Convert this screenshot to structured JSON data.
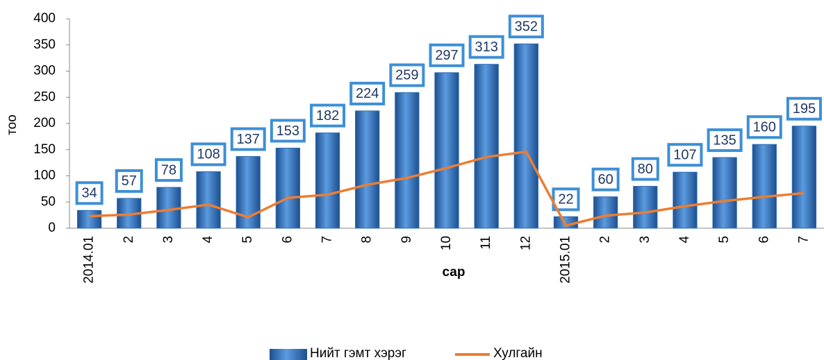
{
  "chart_data": {
    "type": "bar",
    "x_label": "сар",
    "y_label": "тоо",
    "categories": [
      "2014.01",
      "2",
      "3",
      "4",
      "5",
      "6",
      "7",
      "8",
      "9",
      "10",
      "11",
      "12",
      "2015.01",
      "2",
      "3",
      "4",
      "5",
      "6",
      "7"
    ],
    "series": [
      {
        "name": "Нийт гэмт хэрэг",
        "type": "bar",
        "color": "#2e6db4",
        "values": [
          34,
          57,
          78,
          108,
          137,
          153,
          182,
          224,
          259,
          297,
          313,
          352,
          22,
          60,
          80,
          107,
          135,
          160,
          195
        ]
      },
      {
        "name": "Хулгайн",
        "type": "line",
        "color": "#ed7d31",
        "values": [
          23,
          26,
          35,
          45,
          21,
          58,
          64,
          83,
          96,
          115,
          136,
          146,
          5,
          24,
          30,
          42,
          52,
          60,
          67
        ]
      }
    ],
    "ylim": [
      0,
      400
    ],
    "yticks": [
      0,
      50,
      100,
      150,
      200,
      250,
      300,
      350,
      400
    ],
    "legend": "bottom"
  }
}
